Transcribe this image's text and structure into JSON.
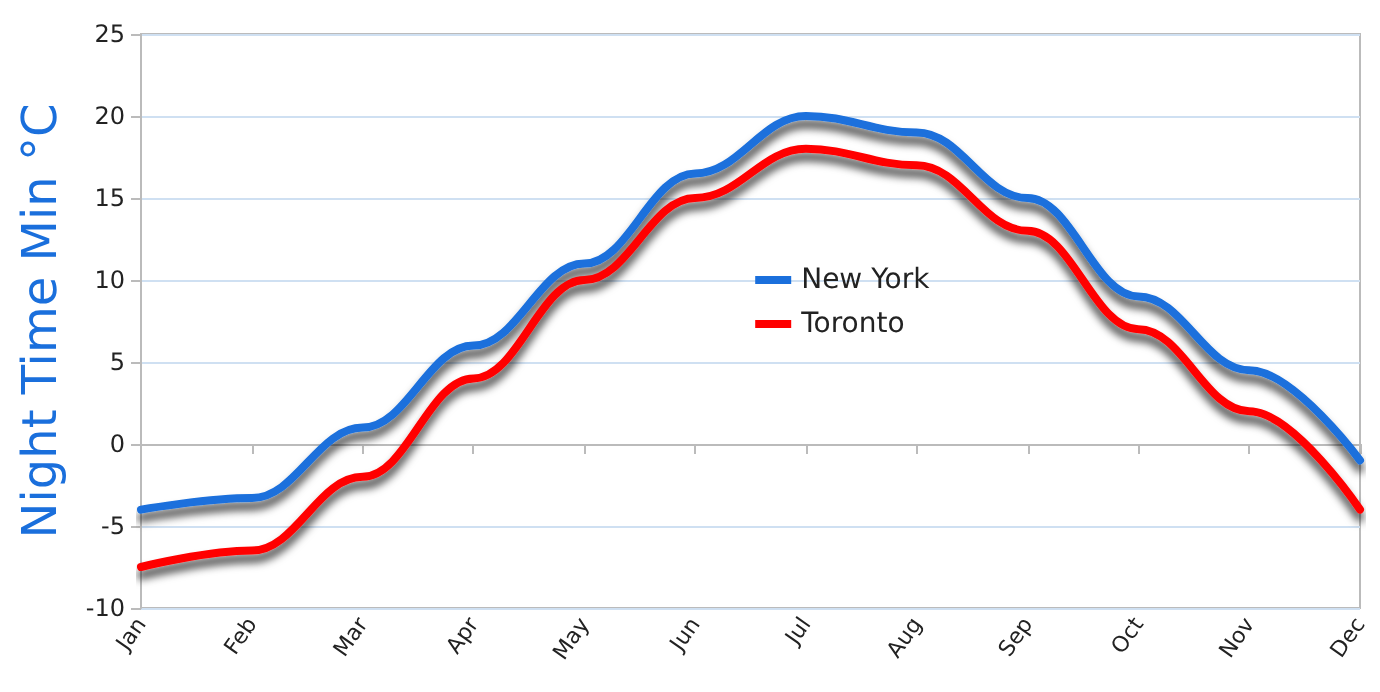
{
  "chart_data": {
    "type": "line",
    "ylabel": "Night Time Min °C",
    "categories": [
      "Jan",
      "Feb",
      "Mar",
      "Apr",
      "May",
      "Jun",
      "Jul",
      "Aug",
      "Sep",
      "Oct",
      "Nov",
      "Dec"
    ],
    "series": [
      {
        "name": "New York",
        "color": "#1a6fdc",
        "values": [
          -4,
          -3.3,
          1,
          6,
          11,
          16.5,
          20,
          19,
          15,
          9,
          4.5,
          -1
        ]
      },
      {
        "name": "Toronto",
        "color": "#ff0000",
        "values": [
          -7.5,
          -6.5,
          -2,
          4,
          10,
          15,
          18,
          17,
          13,
          7,
          2,
          -4
        ]
      }
    ],
    "ylim": [
      -10,
      25
    ],
    "yticks": [
      -10,
      -5,
      0,
      5,
      10,
      15,
      20,
      25
    ],
    "grid": "y",
    "legend": "center",
    "marker": "none",
    "line_style": "solid"
  }
}
